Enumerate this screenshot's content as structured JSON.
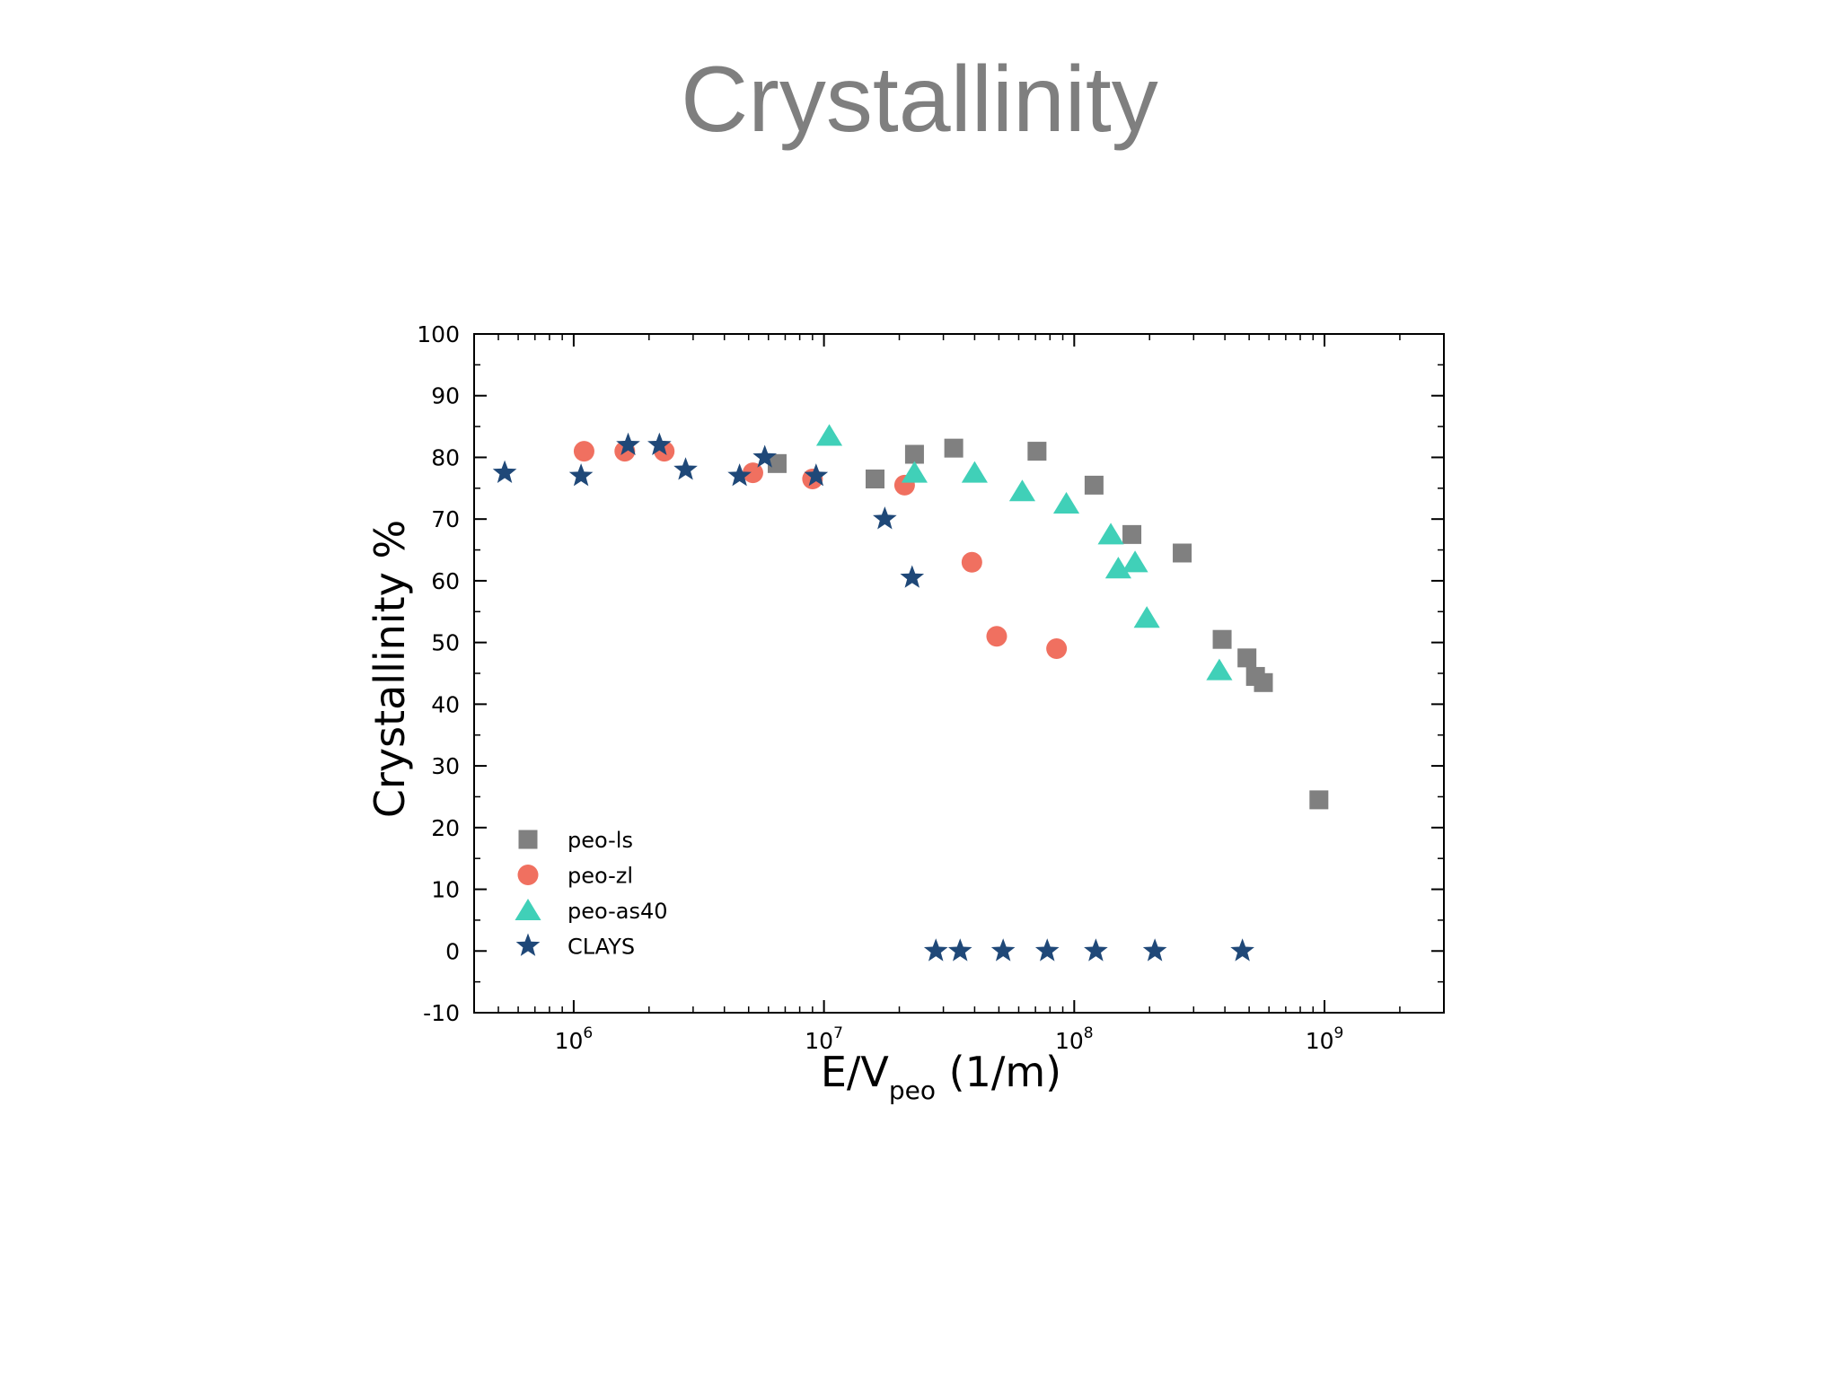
{
  "slide": {
    "title": "Crystallinity"
  },
  "chart_data": {
    "type": "scatter",
    "title": "",
    "ylabel": "Crystallinity %",
    "xlabel": {
      "main": "E/V",
      "subscript": "peo",
      "unit": " (1/m)"
    },
    "x_scale": "log",
    "xlim": [
      400000,
      3000000000
    ],
    "ylim": [
      -10,
      100
    ],
    "y_ticks": [
      -10,
      0,
      10,
      20,
      30,
      40,
      50,
      60,
      70,
      80,
      90,
      100
    ],
    "x_major_ticks": [
      {
        "value": 1000000,
        "base": "10",
        "exp": "6"
      },
      {
        "value": 10000000,
        "base": "10",
        "exp": "7"
      },
      {
        "value": 100000000,
        "base": "10",
        "exp": "8"
      },
      {
        "value": 1000000000,
        "base": "10",
        "exp": "9"
      }
    ],
    "grid": false,
    "legend_position": "bottom-left",
    "series": [
      {
        "name": "peo-ls",
        "marker": "square",
        "color": "#808080",
        "points": [
          [
            6500000,
            79
          ],
          [
            16000000,
            76.5
          ],
          [
            23000000,
            80.5
          ],
          [
            33000000,
            81.5
          ],
          [
            71000000,
            81
          ],
          [
            120000000,
            75.5
          ],
          [
            170000000,
            67.5
          ],
          [
            270000000,
            64.5
          ],
          [
            390000000,
            50.5
          ],
          [
            490000000,
            47.5
          ],
          [
            530000000,
            44.5
          ],
          [
            570000000,
            43.5
          ],
          [
            950000000,
            24.5
          ]
        ]
      },
      {
        "name": "peo-zl",
        "marker": "circle",
        "color": "#f07060",
        "points": [
          [
            1100000,
            81
          ],
          [
            1600000,
            81
          ],
          [
            2300000,
            81
          ],
          [
            5200000,
            77.5
          ],
          [
            9000000,
            76.5
          ],
          [
            21000000,
            75.5
          ],
          [
            39000000,
            63
          ],
          [
            49000000,
            51
          ],
          [
            85000000,
            49
          ]
        ]
      },
      {
        "name": "peo-as40",
        "marker": "triangle",
        "color": "#40d0b8",
        "points": [
          [
            10500000,
            83.5
          ],
          [
            23000000,
            77.5
          ],
          [
            40000000,
            77.5
          ],
          [
            62000000,
            74.5
          ],
          [
            93000000,
            72.5
          ],
          [
            140000000,
            67.5
          ],
          [
            150000000,
            62
          ],
          [
            175000000,
            63
          ],
          [
            195000000,
            54
          ],
          [
            380000000,
            45.5
          ]
        ]
      },
      {
        "name": "CLAYS",
        "marker": "star",
        "color": "#1f4878",
        "points": [
          [
            530000,
            77.5
          ],
          [
            1070000,
            77
          ],
          [
            1650000,
            82
          ],
          [
            2200000,
            82
          ],
          [
            2800000,
            78
          ],
          [
            4600000,
            77
          ],
          [
            5800000,
            80
          ],
          [
            9300000,
            77
          ],
          [
            17500000,
            70
          ],
          [
            22500000,
            60.5
          ],
          [
            28000000,
            0
          ],
          [
            35000000,
            0
          ],
          [
            52000000,
            0
          ],
          [
            78000000,
            0
          ],
          [
            122000000,
            0
          ],
          [
            210000000,
            0
          ],
          [
            470000000,
            0
          ]
        ]
      }
    ]
  }
}
